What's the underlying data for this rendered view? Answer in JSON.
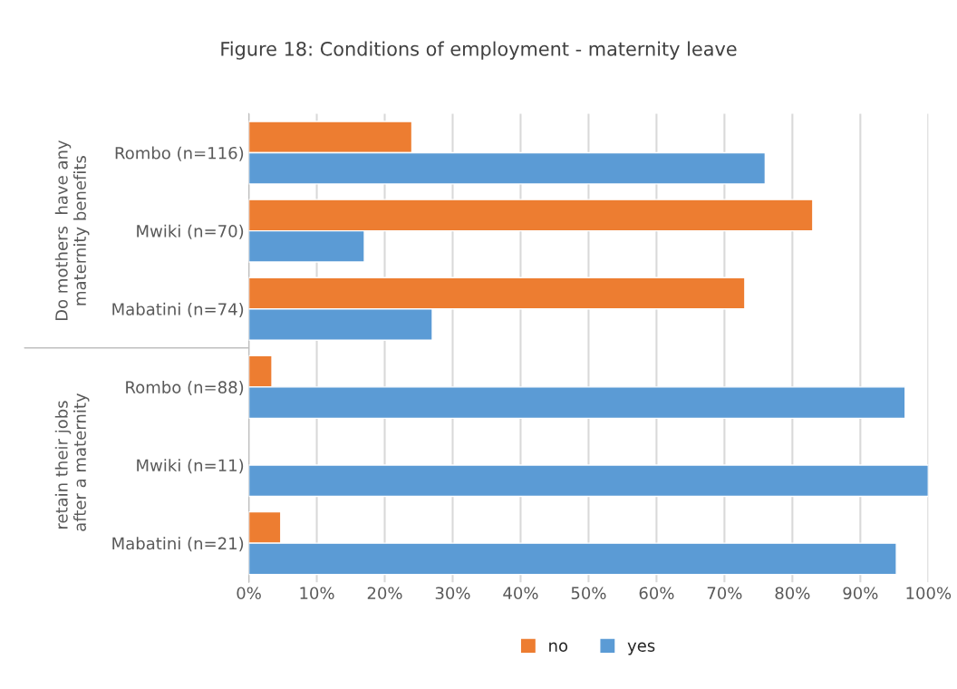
{
  "chart_data": {
    "type": "bar",
    "orientation": "horizontal",
    "title": "Figure 18: Conditions of employment - maternity leave",
    "categories": [
      "Rombo (n=116)",
      "Mwiki (n=70)",
      "Mabatini (n=74)",
      "Rombo (n=88)",
      "Mwiki (n=11)",
      "Mabatini (n=21)"
    ],
    "series": [
      {
        "name": "no",
        "color": "#ed7d31",
        "values": [
          24,
          83,
          73,
          3.4,
          null,
          4.7
        ]
      },
      {
        "name": "yes",
        "color": "#5b9bd5",
        "values": [
          76,
          17,
          27,
          96.6,
          100,
          95.3
        ]
      }
    ],
    "annotations": [
      "Do mothers  have any maternity benefits",
      "retain their jobs  after a maternity"
    ],
    "xlim": [
      0,
      100
    ],
    "xticks": [
      {
        "value": 0,
        "label": "0%"
      },
      {
        "value": 10,
        "label": "10%"
      },
      {
        "value": 20,
        "label": "20%"
      },
      {
        "value": 30,
        "label": "30%"
      },
      {
        "value": 40,
        "label": "40%"
      },
      {
        "value": 50,
        "label": "50%"
      },
      {
        "value": 60,
        "label": "60%"
      },
      {
        "value": 70,
        "label": "70%"
      },
      {
        "value": 80,
        "label": "80%"
      },
      {
        "value": 90,
        "label": "90%"
      },
      {
        "value": 100,
        "label": "100%"
      }
    ],
    "grid": "x",
    "legend": "bottom"
  }
}
